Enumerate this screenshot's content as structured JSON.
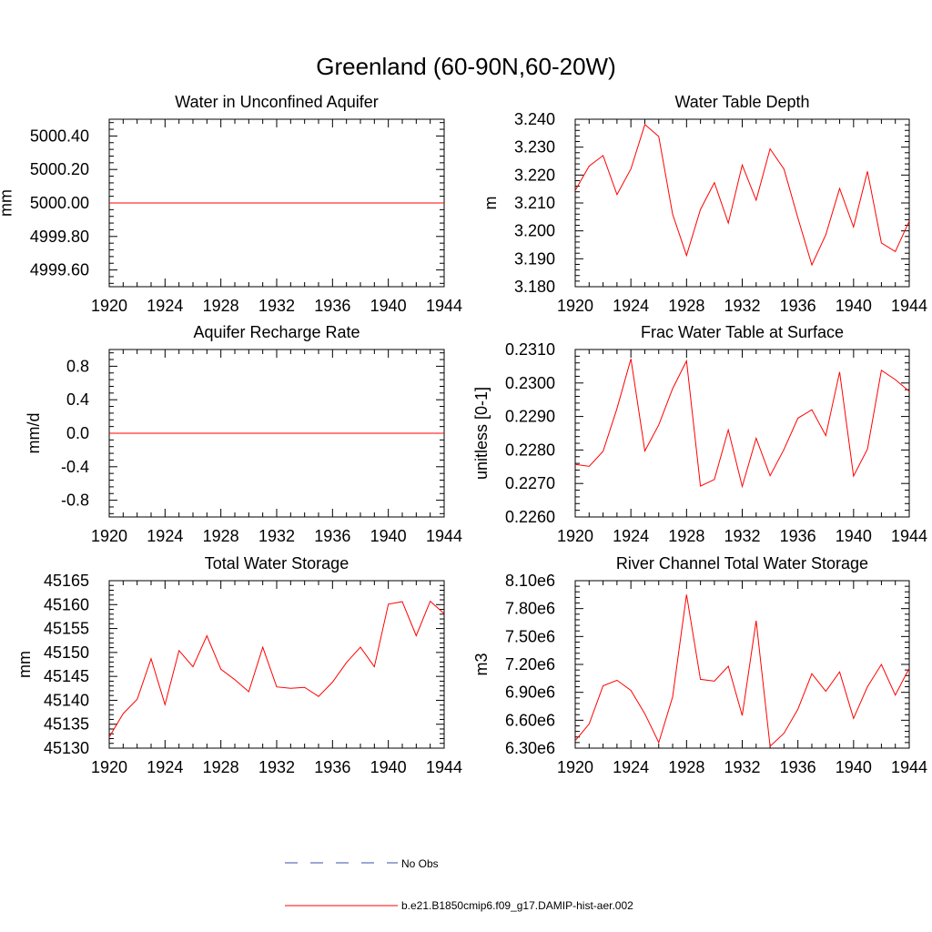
{
  "figure": {
    "title": "Greenland (60-90N,60-20W)"
  },
  "legend": {
    "entries": [
      {
        "label": "No Obs",
        "color": "#3b4fa8",
        "style": "dashed"
      },
      {
        "label": "b.e21.B1850cmip6.f09_g17.DAMIP-hist-aer.002",
        "color": "#ff0000",
        "style": "solid"
      }
    ]
  },
  "chart_data": [
    {
      "type": "line",
      "title": "Water in Unconfined Aquifer",
      "ylabel": "mm",
      "xlim": [
        1920,
        1944
      ],
      "ylim": [
        4999.5,
        5000.5
      ],
      "xticks": [
        "1920",
        "1924",
        "1928",
        "1932",
        "1936",
        "1940",
        "1944"
      ],
      "yticks": [
        "4999.60",
        "4999.80",
        "5000.00",
        "5000.20",
        "5000.40"
      ],
      "x": [
        1920,
        1921,
        1922,
        1923,
        1924,
        1925,
        1926,
        1927,
        1928,
        1929,
        1930,
        1931,
        1932,
        1933,
        1934,
        1935,
        1936,
        1937,
        1938,
        1939,
        1940,
        1941,
        1942,
        1943,
        1944
      ],
      "series": [
        {
          "color": "#ff0000",
          "values": [
            5000,
            5000,
            5000,
            5000,
            5000,
            5000,
            5000,
            5000,
            5000,
            5000,
            5000,
            5000,
            5000,
            5000,
            5000,
            5000,
            5000,
            5000,
            5000,
            5000,
            5000,
            5000,
            5000,
            5000,
            5000
          ]
        }
      ]
    },
    {
      "type": "line",
      "title": "Water Table Depth",
      "ylabel": "m",
      "xlim": [
        1920,
        1944
      ],
      "ylim": [
        3.18,
        3.24
      ],
      "xticks": [
        "1920",
        "1924",
        "1928",
        "1932",
        "1936",
        "1940",
        "1944"
      ],
      "yticks": [
        "3.180",
        "3.190",
        "3.200",
        "3.210",
        "3.220",
        "3.230",
        "3.240"
      ],
      "x": [
        1920,
        1921,
        1922,
        1923,
        1924,
        1925,
        1926,
        1927,
        1928,
        1929,
        1930,
        1931,
        1932,
        1933,
        1934,
        1935,
        1936,
        1937,
        1938,
        1939,
        1940,
        1941,
        1942,
        1943,
        1944
      ],
      "series": [
        {
          "color": "#ff0000",
          "values": [
            3.2145,
            3.2232,
            3.227,
            3.213,
            3.2222,
            3.2381,
            3.2338,
            3.206,
            3.1912,
            3.2077,
            3.2173,
            3.2028,
            3.2236,
            3.211,
            3.2294,
            3.2221,
            3.2046,
            3.1878,
            3.1986,
            3.2152,
            3.2014,
            3.2213,
            3.1957,
            3.1926,
            3.2035
          ]
        }
      ]
    },
    {
      "type": "line",
      "title": "Aquifer Recharge Rate",
      "ylabel": "mm/d",
      "xlim": [
        1920,
        1944
      ],
      "ylim": [
        -1.0,
        1.0
      ],
      "xticks": [
        "1920",
        "1924",
        "1928",
        "1932",
        "1936",
        "1940",
        "1944"
      ],
      "yticks": [
        "-0.8",
        "-0.4",
        "0.0",
        "0.4",
        "0.8"
      ],
      "x": [
        1920,
        1921,
        1922,
        1923,
        1924,
        1925,
        1926,
        1927,
        1928,
        1929,
        1930,
        1931,
        1932,
        1933,
        1934,
        1935,
        1936,
        1937,
        1938,
        1939,
        1940,
        1941,
        1942,
        1943,
        1944
      ],
      "series": [
        {
          "color": "#ff0000",
          "values": [
            0,
            0,
            0,
            0,
            0,
            0,
            0,
            0,
            0,
            0,
            0,
            0,
            0,
            0,
            0,
            0,
            0,
            0,
            0,
            0,
            0,
            0,
            0,
            0,
            0
          ]
        }
      ]
    },
    {
      "type": "line",
      "title": "Frac Water Table at Surface",
      "ylabel": "unitless [0-1]",
      "xlim": [
        1920,
        1944
      ],
      "ylim": [
        0.226,
        0.231
      ],
      "xticks": [
        "1920",
        "1924",
        "1928",
        "1932",
        "1936",
        "1940",
        "1944"
      ],
      "yticks": [
        "0.2260",
        "0.2270",
        "0.2280",
        "0.2290",
        "0.2300",
        "0.2310"
      ],
      "x": [
        1920,
        1921,
        1922,
        1923,
        1924,
        1925,
        1926,
        1927,
        1928,
        1929,
        1930,
        1931,
        1932,
        1933,
        1934,
        1935,
        1936,
        1937,
        1938,
        1939,
        1940,
        1941,
        1942,
        1943,
        1944
      ],
      "series": [
        {
          "color": "#ff0000",
          "values": [
            0.22757,
            0.22751,
            0.22796,
            0.22924,
            0.23072,
            0.22797,
            0.22875,
            0.22983,
            0.23066,
            0.22692,
            0.22712,
            0.2286,
            0.22691,
            0.22835,
            0.22723,
            0.22802,
            0.22895,
            0.2292,
            0.22843,
            0.23033,
            0.22722,
            0.22803,
            0.23038,
            0.2301,
            0.22975
          ]
        }
      ]
    },
    {
      "type": "line",
      "title": "Total Water Storage",
      "ylabel": "mm",
      "xlim": [
        1920,
        1944
      ],
      "ylim": [
        45130,
        45165
      ],
      "xticks": [
        "1920",
        "1924",
        "1928",
        "1932",
        "1936",
        "1940",
        "1944"
      ],
      "yticks": [
        "45130",
        "45135",
        "45140",
        "45145",
        "45150",
        "45155",
        "45160",
        "45165"
      ],
      "x": [
        1920,
        1921,
        1922,
        1923,
        1924,
        1925,
        1926,
        1927,
        1928,
        1929,
        1930,
        1931,
        1932,
        1933,
        1934,
        1935,
        1936,
        1937,
        1938,
        1939,
        1940,
        1941,
        1942,
        1943,
        1944
      ],
      "series": [
        {
          "color": "#ff0000",
          "values": [
            45132.3,
            45137.2,
            45140.2,
            45148.7,
            45139.1,
            45150.4,
            45147.0,
            45153.5,
            45146.5,
            45144.3,
            45141.8,
            45151.1,
            45142.8,
            45142.5,
            45142.7,
            45140.8,
            45143.8,
            45147.9,
            45151.1,
            45147.0,
            45160.1,
            45160.6,
            45153.5,
            45160.7,
            45158.1
          ]
        }
      ]
    },
    {
      "type": "line",
      "title": "River Channel Total Water Storage",
      "ylabel": "m3",
      "xlim": [
        1920,
        1944
      ],
      "ylim": [
        6300000,
        8100000
      ],
      "xticks": [
        "1920",
        "1924",
        "1928",
        "1932",
        "1936",
        "1940",
        "1944"
      ],
      "yticks": [
        "6.30e6",
        "6.60e6",
        "6.90e6",
        "7.20e6",
        "7.50e6",
        "7.80e6",
        "8.10e6"
      ],
      "x": [
        1920,
        1921,
        1922,
        1923,
        1924,
        1925,
        1926,
        1927,
        1928,
        1929,
        1930,
        1931,
        1932,
        1933,
        1934,
        1935,
        1936,
        1937,
        1938,
        1939,
        1940,
        1941,
        1942,
        1943,
        1944
      ],
      "series": [
        {
          "color": "#ff0000",
          "values": [
            6380000,
            6560000,
            6970000,
            7030000,
            6920000,
            6670000,
            6360000,
            6850000,
            7950000,
            7040000,
            7020000,
            7180000,
            6650000,
            7670000,
            6320000,
            6460000,
            6720000,
            7100000,
            6910000,
            7120000,
            6620000,
            6960000,
            7200000,
            6870000,
            7160000
          ]
        }
      ]
    }
  ]
}
